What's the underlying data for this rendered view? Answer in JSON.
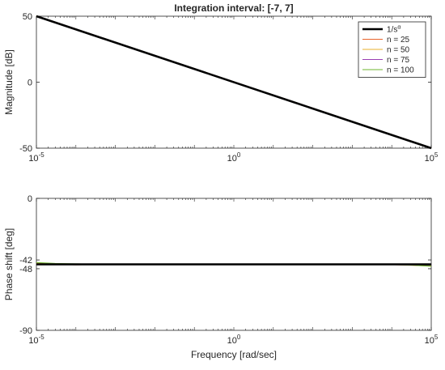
{
  "chart_data": [
    {
      "type": "line",
      "title": "Integration interval: [-7, 7]",
      "xlabel": "",
      "ylabel": "Magnitude [dB]",
      "xscale": "log",
      "xlim": [
        1e-05,
        100000
      ],
      "ylim": [
        -50,
        50
      ],
      "xticks": [
        1e-05,
        1,
        100000
      ],
      "xtick_base": "10",
      "xtick_exponents": [
        "-5",
        "0",
        "5"
      ],
      "yticks": [
        "50",
        "0",
        "-50"
      ],
      "ytick_values": [
        50,
        0,
        -50
      ],
      "legend": {
        "placement": "top-right",
        "entries": [
          {
            "label_main": "1/s",
            "label_sup": "α",
            "color": "#000000",
            "bold": true
          },
          {
            "label_main": "n = 25",
            "label_sup": "",
            "color": "#e8642c",
            "bold": false
          },
          {
            "label_main": "n = 50",
            "label_sup": "",
            "color": "#e8b12c",
            "bold": false
          },
          {
            "label_main": "n = 75",
            "label_sup": "",
            "color": "#9b3fb3",
            "bold": false
          },
          {
            "label_main": "n = 100",
            "label_sup": "",
            "color": "#6fb52f",
            "bold": false
          }
        ]
      },
      "series": [
        {
          "name": "1/s^α",
          "color": "#000000",
          "x": [
            1e-05,
            100000
          ],
          "y": [
            50,
            -50
          ]
        },
        {
          "name": "n = 25",
          "color": "#e8642c",
          "x": [
            1e-05,
            100000
          ],
          "y": [
            50.3,
            -49.7
          ]
        },
        {
          "name": "n = 50",
          "color": "#e8b12c",
          "x": [
            1e-05,
            100000
          ],
          "y": [
            50.2,
            -49.8
          ]
        },
        {
          "name": "n = 75",
          "color": "#9b3fb3",
          "x": [
            1e-05,
            100000
          ],
          "y": [
            50.1,
            -49.9
          ]
        },
        {
          "name": "n = 100",
          "color": "#6fb52f",
          "x": [
            1e-05,
            100000
          ],
          "y": [
            50.25,
            -49.75
          ]
        }
      ]
    },
    {
      "type": "line",
      "title": "",
      "xlabel": "Frequency [rad/sec]",
      "ylabel": "Phase shift [deg]",
      "xscale": "log",
      "xlim": [
        1e-05,
        100000
      ],
      "ylim": [
        -90,
        0
      ],
      "xticks": [
        1e-05,
        1,
        100000
      ],
      "xtick_base": "10",
      "xtick_exponents": [
        "-5",
        "0",
        "5"
      ],
      "yticks": [
        "0",
        "-42",
        "-48",
        "-90"
      ],
      "ytick_values": [
        0,
        -42,
        -48,
        -90
      ],
      "series": [
        {
          "name": "1/s^α",
          "color": "#000000",
          "x": [
            1e-05,
            100000
          ],
          "y": [
            -45,
            -45
          ]
        },
        {
          "name": "n = 25",
          "color": "#e8642c",
          "x": [
            1e-05,
            3e-05,
            0.0001,
            0.0003,
            0.001,
            0.003,
            0.01,
            0.03,
            0.1,
            0.3,
            1,
            3,
            10,
            30,
            100,
            300,
            1000,
            3000,
            10000,
            30000,
            100000
          ],
          "y": [
            -44.2,
            -45.0,
            -45.3,
            -45.1,
            -44.9,
            -45.1,
            -45.0,
            -44.9,
            -45.1,
            -45.0,
            -44.9,
            -45.1,
            -45.0,
            -44.9,
            -45.1,
            -45.0,
            -44.9,
            -45.1,
            -45.2,
            -45.6,
            -46.1
          ]
        },
        {
          "name": "n = 50",
          "color": "#e8b12c",
          "x": [
            1e-05,
            3e-05,
            0.0001,
            0.0003,
            0.001,
            0.003,
            0.01,
            0.03,
            0.1,
            0.3,
            1,
            3,
            10,
            30,
            100,
            300,
            1000,
            3000,
            10000,
            30000,
            100000
          ],
          "y": [
            -44.6,
            -45.0,
            -45.2,
            -45.0,
            -45.1,
            -44.9,
            -45.1,
            -45.0,
            -44.9,
            -45.1,
            -45.0,
            -44.9,
            -45.1,
            -45.0,
            -44.9,
            -45.1,
            -45.0,
            -44.9,
            -45.1,
            -45.4,
            -45.9
          ]
        },
        {
          "name": "n = 75",
          "color": "#9b3fb3",
          "x": [
            1e-05,
            3e-05,
            0.0001,
            0.0003,
            0.001,
            0.003,
            0.01,
            0.03,
            0.1,
            0.3,
            1,
            3,
            10,
            30,
            100,
            300,
            1000,
            3000,
            10000,
            30000,
            100000
          ],
          "y": [
            -44.8,
            -45.0,
            -45.1,
            -45.0,
            -45.0,
            -45.0,
            -45.0,
            -45.0,
            -45.0,
            -45.0,
            -45.0,
            -45.0,
            -45.0,
            -45.0,
            -45.0,
            -45.0,
            -45.0,
            -45.0,
            -45.0,
            -45.2,
            -45.6
          ]
        },
        {
          "name": "n = 100",
          "color": "#6fb52f",
          "x": [
            1e-05,
            3e-05,
            0.0001,
            0.0003,
            0.001,
            0.003,
            0.01,
            0.03,
            0.1,
            0.3,
            1,
            3,
            10,
            30,
            100,
            300,
            1000,
            3000,
            10000,
            30000,
            100000
          ],
          "y": [
            -43.8,
            -44.4,
            -44.7,
            -44.9,
            -45.0,
            -45.0,
            -45.0,
            -45.0,
            -45.0,
            -45.0,
            -45.0,
            -45.0,
            -45.0,
            -45.0,
            -45.0,
            -45.0,
            -45.0,
            -45.0,
            -45.1,
            -45.5,
            -46.3
          ]
        }
      ]
    }
  ]
}
